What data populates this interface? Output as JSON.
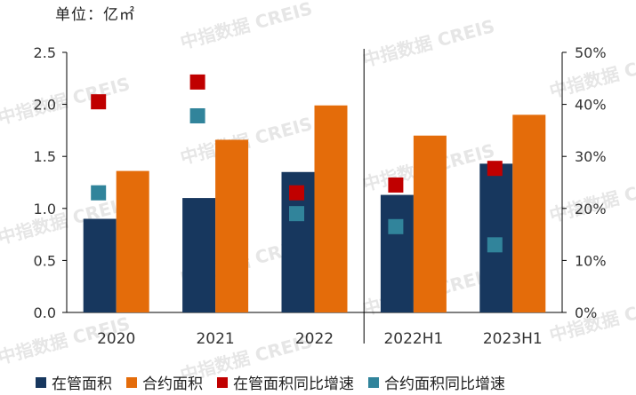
{
  "unit_label": "单位：亿㎡",
  "watermark": "中指数据 CREIS",
  "chart_data": {
    "type": "bar",
    "categories": [
      "2020",
      "2021",
      "2022",
      "2022H1",
      "2023H1"
    ],
    "series": [
      {
        "name": "在管面积",
        "type": "bar",
        "axis": "left",
        "color": "#17375e",
        "values": [
          0.9,
          1.1,
          1.35,
          1.13,
          1.43
        ]
      },
      {
        "name": "合约面积",
        "type": "bar",
        "axis": "left",
        "color": "#e46c0a",
        "values": [
          1.36,
          1.66,
          1.99,
          1.7,
          1.9
        ]
      },
      {
        "name": "在管面积同比增速",
        "type": "scatter",
        "axis": "right",
        "color": "#c00000",
        "values": [
          0.405,
          0.443,
          0.23,
          0.245,
          0.277
        ]
      },
      {
        "name": "合约面积同比增速",
        "type": "scatter",
        "axis": "right",
        "color": "#31849b",
        "values": [
          0.23,
          0.378,
          0.19,
          0.165,
          0.13
        ]
      }
    ],
    "y_left": {
      "ylim": [
        0,
        2.5
      ],
      "ticks": [
        "0.0",
        "0.5",
        "1.0",
        "1.5",
        "2.0",
        "2.5"
      ]
    },
    "y_right": {
      "ylim": [
        0,
        0.5
      ],
      "ticks": [
        "0%",
        "10%",
        "20%",
        "30%",
        "40%",
        "50%"
      ]
    },
    "separator_after_category": "2022",
    "grid": false,
    "legend_position": "bottom"
  },
  "legend": [
    {
      "label": "在管面积",
      "color": "#17375e"
    },
    {
      "label": "合约面积",
      "color": "#e46c0a"
    },
    {
      "label": "在管面积同比增速",
      "color": "#c00000"
    },
    {
      "label": "合约面积同比增速",
      "color": "#31849b"
    }
  ]
}
